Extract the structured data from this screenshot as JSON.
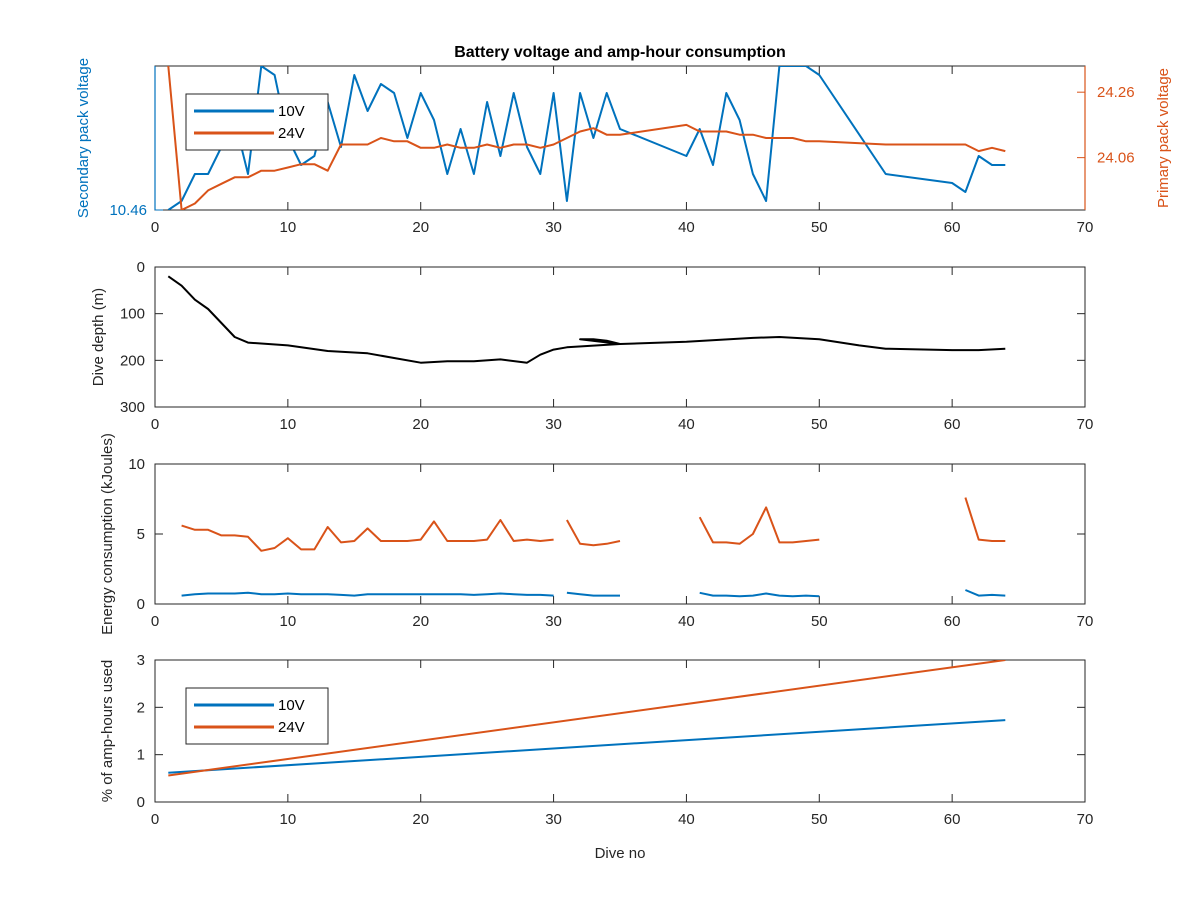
{
  "figure": {
    "title": "Battery voltage and amp-hour consumption",
    "xlabel": "Dive no"
  },
  "colors": {
    "blue": "#0072BD",
    "orange": "#D95319",
    "black": "#000000"
  },
  "chart_data": [
    {
      "type": "line",
      "panel": "voltage",
      "title": "Battery voltage and amp-hour consumption",
      "xlim": [
        0,
        70
      ],
      "xticks": [
        0,
        10,
        20,
        30,
        40,
        50,
        60,
        70
      ],
      "grid": false,
      "legend": {
        "placement": "top-left",
        "entries": [
          "10V",
          "24V"
        ]
      },
      "axes": {
        "left": {
          "label": "Secondary pack voltage",
          "ylim": [
            10.46,
            10.62
          ],
          "ticks": [
            10.46
          ],
          "tick_labels": [
            "10.46"
          ]
        },
        "right": {
          "label": "Primary pack voltage",
          "ylim": [
            23.9,
            24.34
          ],
          "ticks": [
            24.06,
            24.26
          ],
          "tick_labels": [
            "24.06",
            "24.26"
          ]
        }
      },
      "series": [
        {
          "name": "10V",
          "axis": "left",
          "x": [
            1,
            2,
            3,
            4,
            5,
            6,
            7,
            8,
            9,
            10,
            11,
            12,
            13,
            14,
            15,
            16,
            17,
            18,
            19,
            20,
            21,
            22,
            23,
            24,
            25,
            26,
            27,
            28,
            29,
            30,
            31,
            32,
            33,
            34,
            35,
            40,
            41,
            42,
            43,
            44,
            45,
            46,
            47,
            48,
            49,
            50,
            55,
            60,
            61,
            62,
            63,
            64
          ],
          "y": [
            10.46,
            10.47,
            10.5,
            10.5,
            10.53,
            10.56,
            10.5,
            10.62,
            10.61,
            10.54,
            10.51,
            10.52,
            10.58,
            10.53,
            10.61,
            10.57,
            10.6,
            10.59,
            10.54,
            10.59,
            10.56,
            10.5,
            10.55,
            10.5,
            10.58,
            10.52,
            10.59,
            10.53,
            10.5,
            10.59,
            10.47,
            10.59,
            10.54,
            10.59,
            10.55,
            10.52,
            10.55,
            10.51,
            10.59,
            10.56,
            10.5,
            10.47,
            10.62,
            10.62,
            10.62,
            10.61,
            10.5,
            10.49,
            10.48,
            10.52,
            10.51,
            10.51
          ]
        },
        {
          "name": "24V",
          "axis": "right",
          "x": [
            1,
            2,
            3,
            4,
            5,
            6,
            7,
            8,
            9,
            10,
            11,
            12,
            13,
            14,
            15,
            16,
            17,
            18,
            19,
            20,
            21,
            22,
            23,
            24,
            25,
            26,
            27,
            28,
            29,
            30,
            31,
            32,
            33,
            34,
            35,
            40,
            41,
            42,
            43,
            44,
            45,
            46,
            47,
            48,
            49,
            50,
            55,
            60,
            61,
            62,
            63,
            64
          ],
          "y": [
            24.34,
            23.9,
            23.92,
            23.96,
            23.98,
            24.0,
            24.0,
            24.02,
            24.02,
            24.03,
            24.04,
            24.04,
            24.02,
            24.1,
            24.1,
            24.1,
            24.12,
            24.11,
            24.11,
            24.09,
            24.09,
            24.1,
            24.09,
            24.09,
            24.1,
            24.09,
            24.1,
            24.1,
            24.09,
            24.1,
            24.12,
            24.14,
            24.15,
            24.13,
            24.13,
            24.16,
            24.14,
            24.14,
            24.14,
            24.13,
            24.13,
            24.12,
            24.12,
            24.12,
            24.11,
            24.11,
            24.1,
            24.1,
            24.1,
            24.08,
            24.09,
            24.08
          ]
        }
      ]
    },
    {
      "type": "line",
      "panel": "depth",
      "ylabel": "Dive depth (m)",
      "xlim": [
        0,
        70
      ],
      "xticks": [
        0,
        10,
        20,
        30,
        40,
        50,
        60,
        70
      ],
      "ylim": [
        0,
        300
      ],
      "yticks": [
        0,
        100,
        200,
        300
      ],
      "y_reversed": true,
      "grid": false,
      "series": [
        {
          "name": "",
          "x": [
            1,
            2,
            3,
            4,
            5,
            6,
            7,
            10,
            13,
            16,
            18,
            20,
            22,
            24,
            26,
            28,
            29,
            30,
            31,
            35,
            32,
            33,
            34,
            35,
            40,
            45,
            47,
            50,
            53,
            55,
            60,
            62,
            64
          ],
          "y": [
            20,
            40,
            70,
            90,
            120,
            150,
            162,
            168,
            180,
            185,
            195,
            205,
            202,
            202,
            198,
            205,
            188,
            177,
            172,
            165,
            155,
            155,
            158,
            165,
            160,
            152,
            150,
            155,
            168,
            175,
            178,
            178,
            175
          ]
        }
      ]
    },
    {
      "type": "line",
      "panel": "energy",
      "ylabel": "Energy consumption (kJoules)",
      "xlim": [
        0,
        70
      ],
      "xticks": [
        0,
        10,
        20,
        30,
        40,
        50,
        60,
        70
      ],
      "ylim": [
        0,
        10
      ],
      "yticks": [
        0,
        5,
        10
      ],
      "grid": false,
      "series": [
        {
          "name": "24V",
          "segments": [
            {
              "x": [
                2,
                3,
                4,
                5,
                6,
                7,
                8,
                9,
                10,
                11,
                12,
                13,
                14,
                15,
                16,
                17,
                18,
                19,
                20,
                21,
                22,
                23,
                24,
                25,
                26,
                27,
                28,
                29,
                30
              ],
              "y": [
                5.6,
                5.3,
                5.3,
                4.9,
                4.9,
                4.8,
                3.8,
                4.0,
                4.7,
                3.9,
                3.9,
                5.5,
                4.4,
                4.5,
                5.4,
                4.5,
                4.5,
                4.5,
                4.6,
                5.9,
                4.5,
                4.5,
                4.5,
                4.6,
                6.0,
                4.5,
                4.6,
                4.5,
                4.6
              ]
            },
            {
              "x": [
                31,
                32,
                33,
                34,
                35
              ],
              "y": [
                6.0,
                4.3,
                4.2,
                4.3,
                4.5
              ]
            },
            {
              "x": [
                41,
                42,
                43,
                44,
                45,
                46,
                47,
                48,
                49,
                50
              ],
              "y": [
                6.2,
                4.4,
                4.4,
                4.3,
                5.0,
                6.9,
                4.4,
                4.4,
                4.5,
                4.6
              ]
            },
            {
              "x": [
                61,
                62,
                63,
                64
              ],
              "y": [
                7.6,
                4.6,
                4.5,
                4.5
              ]
            }
          ]
        },
        {
          "name": "10V",
          "segments": [
            {
              "x": [
                2,
                3,
                4,
                5,
                6,
                7,
                8,
                9,
                10,
                11,
                12,
                13,
                14,
                15,
                16,
                17,
                18,
                19,
                20,
                21,
                22,
                23,
                24,
                25,
                26,
                27,
                28,
                29,
                30
              ],
              "y": [
                0.6,
                0.7,
                0.75,
                0.75,
                0.75,
                0.8,
                0.7,
                0.7,
                0.75,
                0.7,
                0.7,
                0.7,
                0.65,
                0.6,
                0.7,
                0.7,
                0.7,
                0.7,
                0.7,
                0.7,
                0.7,
                0.7,
                0.65,
                0.7,
                0.75,
                0.7,
                0.65,
                0.65,
                0.6
              ]
            },
            {
              "x": [
                31,
                32,
                33,
                34,
                35
              ],
              "y": [
                0.8,
                0.7,
                0.6,
                0.6,
                0.6
              ]
            },
            {
              "x": [
                41,
                42,
                43,
                44,
                45,
                46,
                47,
                48,
                49,
                50
              ],
              "y": [
                0.8,
                0.6,
                0.6,
                0.55,
                0.6,
                0.75,
                0.6,
                0.55,
                0.6,
                0.55
              ]
            },
            {
              "x": [
                61,
                62,
                63,
                64
              ],
              "y": [
                1.0,
                0.6,
                0.65,
                0.6
              ]
            }
          ]
        }
      ]
    },
    {
      "type": "line",
      "panel": "amphours",
      "ylabel": "% of amp-hours used",
      "xlabel": "Dive no",
      "xlim": [
        0,
        70
      ],
      "xticks": [
        0,
        10,
        20,
        30,
        40,
        50,
        60,
        70
      ],
      "ylim": [
        0,
        3
      ],
      "yticks": [
        0,
        1,
        2,
        3
      ],
      "grid": false,
      "legend": {
        "placement": "bottom-left",
        "entries": [
          "10V",
          "24V"
        ]
      },
      "series": [
        {
          "name": "10V",
          "x": [
            1,
            64
          ],
          "y": [
            0.62,
            1.73
          ]
        },
        {
          "name": "24V",
          "x": [
            1,
            64
          ],
          "y": [
            0.56,
            3.0
          ]
        }
      ]
    }
  ]
}
